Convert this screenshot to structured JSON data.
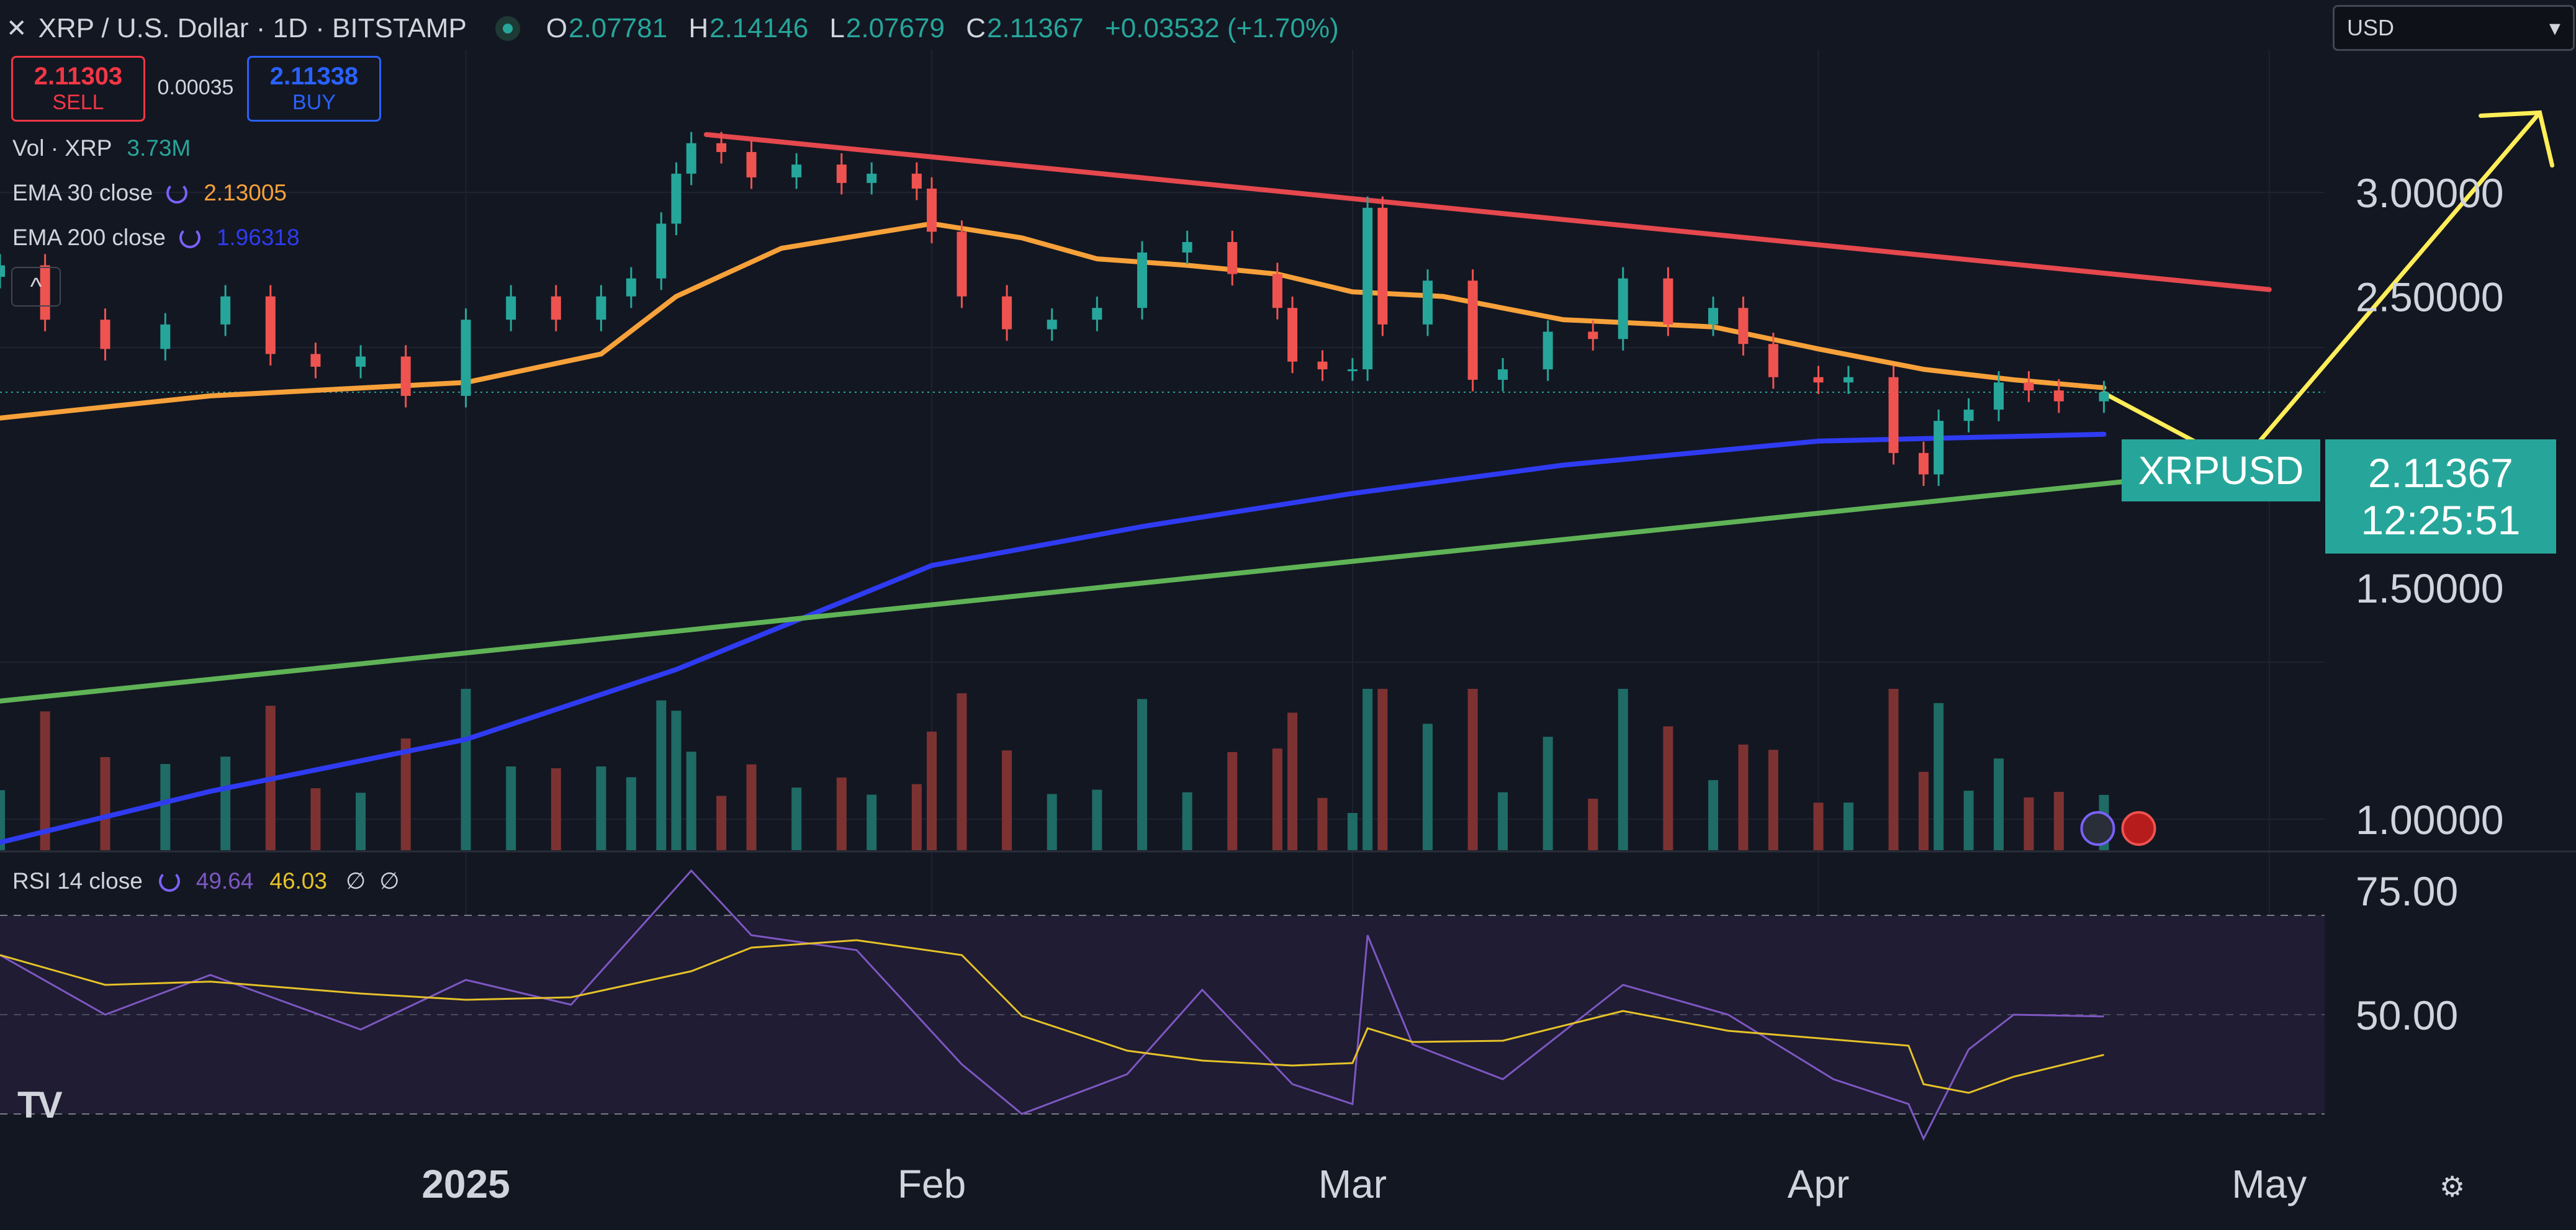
{
  "header": {
    "close_icon": "close-icon",
    "title": "XRP / U.S. Dollar · 1D · BITSTAMP",
    "ohlc": [
      {
        "k": "O",
        "v": "2.07781"
      },
      {
        "k": "H",
        "v": "2.14146"
      },
      {
        "k": "L",
        "v": "2.07679"
      },
      {
        "k": "C",
        "v": "2.11367"
      }
    ],
    "change": "+0.03532 (+1.70%)"
  },
  "trade": {
    "sell_price": "2.11303",
    "sell_label": "SELL",
    "spread": "0.00035",
    "buy_price": "2.11338",
    "buy_label": "BUY"
  },
  "legends": {
    "vol": {
      "name": "Vol · XRP",
      "value": "3.73M"
    },
    "ema30": {
      "name": "EMA 30 close",
      "value": "2.13005",
      "color": "#f7a13a"
    },
    "ema200": {
      "name": "EMA 200 close",
      "value": "1.96318",
      "color": "#2f3bf2"
    },
    "collapse": "^",
    "rsi": {
      "name": "RSI 14 close",
      "value1": "49.64",
      "value2": "46.03",
      "extra1": "∅",
      "extra2": "∅"
    }
  },
  "currency_select": {
    "value": "USD",
    "icon": "chevron-down-icon"
  },
  "price_labels": {
    "symbol": "XRPUSD",
    "price": "2.11367",
    "countdown": "12:25:51"
  },
  "logo": "TV",
  "settings_icon": "gear-icon",
  "colors": {
    "up": "#26a69a",
    "down": "#ef5350",
    "vol_up": "#1f6b66",
    "vol_down": "#7d3232",
    "resistance": "#e5484d",
    "support": "#5fb356",
    "projection": "#ffee58",
    "rsi_line": "#7e57c2",
    "rsi_ma": "#e6c229",
    "background": "#131722"
  },
  "chart_data": {
    "type": "candlestick",
    "title": "XRP / U.S. Dollar · 1D · BITSTAMP",
    "y_axis": {
      "scale": "log",
      "ticks": [
        "3.00000",
        "2.50000",
        "1.50000",
        "1.00000"
      ],
      "range": [
        0.95,
        3.55
      ]
    },
    "x_axis": {
      "ticks": [
        "2025",
        "Feb",
        "Mar",
        "Apr",
        "May"
      ],
      "range": [
        "2024-12-01",
        "2025-05-21"
      ]
    },
    "ohlc_2025_04_20": {
      "open": 2.07781,
      "high": 2.14146,
      "low": 2.07679,
      "close": 2.11367
    },
    "last_price": 2.11367,
    "closes": [
      {
        "date": "2024-12-01",
        "close": 2.64
      },
      {
        "date": "2024-12-04",
        "close": 2.4
      },
      {
        "date": "2024-12-08",
        "close": 2.28
      },
      {
        "date": "2024-12-12",
        "close": 2.38
      },
      {
        "date": "2024-12-16",
        "close": 2.5
      },
      {
        "date": "2024-12-19",
        "close": 2.26
      },
      {
        "date": "2024-12-22",
        "close": 2.21
      },
      {
        "date": "2024-12-25",
        "close": 2.25
      },
      {
        "date": "2024-12-28",
        "close": 2.1
      },
      {
        "date": "2025-01-01",
        "close": 2.4
      },
      {
        "date": "2025-01-04",
        "close": 2.5
      },
      {
        "date": "2025-01-07",
        "close": 2.4
      },
      {
        "date": "2025-01-10",
        "close": 2.5
      },
      {
        "date": "2025-01-12",
        "close": 2.58
      },
      {
        "date": "2025-01-14",
        "close": 2.84
      },
      {
        "date": "2025-01-15",
        "close": 3.1
      },
      {
        "date": "2025-01-16",
        "close": 3.27
      },
      {
        "date": "2025-01-18",
        "close": 3.22
      },
      {
        "date": "2025-01-20",
        "close": 3.08
      },
      {
        "date": "2025-01-23",
        "close": 3.15
      },
      {
        "date": "2025-01-26",
        "close": 3.05
      },
      {
        "date": "2025-01-28",
        "close": 3.1
      },
      {
        "date": "2025-01-31",
        "close": 3.02
      },
      {
        "date": "2025-02-01",
        "close": 2.8
      },
      {
        "date": "2025-02-03",
        "close": 2.5
      },
      {
        "date": "2025-02-06",
        "close": 2.36
      },
      {
        "date": "2025-02-09",
        "close": 2.4
      },
      {
        "date": "2025-02-12",
        "close": 2.45
      },
      {
        "date": "2025-02-15",
        "close": 2.7
      },
      {
        "date": "2025-02-18",
        "close": 2.75
      },
      {
        "date": "2025-02-21",
        "close": 2.6
      },
      {
        "date": "2025-02-24",
        "close": 2.45
      },
      {
        "date": "2025-02-25",
        "close": 2.23
      },
      {
        "date": "2025-02-27",
        "close": 2.2
      },
      {
        "date": "2025-03-01",
        "close": 2.2
      },
      {
        "date": "2025-03-02",
        "close": 2.92
      },
      {
        "date": "2025-03-03",
        "close": 2.38
      },
      {
        "date": "2025-03-06",
        "close": 2.57
      },
      {
        "date": "2025-03-09",
        "close": 2.16
      },
      {
        "date": "2025-03-11",
        "close": 2.2
      },
      {
        "date": "2025-03-14",
        "close": 2.35
      },
      {
        "date": "2025-03-17",
        "close": 2.32
      },
      {
        "date": "2025-03-19",
        "close": 2.58
      },
      {
        "date": "2025-03-22",
        "close": 2.38
      },
      {
        "date": "2025-03-25",
        "close": 2.45
      },
      {
        "date": "2025-03-27",
        "close": 2.3
      },
      {
        "date": "2025-03-29",
        "close": 2.17
      },
      {
        "date": "2025-04-01",
        "close": 2.15
      },
      {
        "date": "2025-04-03",
        "close": 2.17
      },
      {
        "date": "2025-04-06",
        "close": 1.9
      },
      {
        "date": "2025-04-08",
        "close": 1.83
      },
      {
        "date": "2025-04-09",
        "close": 2.01
      },
      {
        "date": "2025-04-11",
        "close": 2.05
      },
      {
        "date": "2025-04-13",
        "close": 2.15
      },
      {
        "date": "2025-04-15",
        "close": 2.12
      },
      {
        "date": "2025-04-17",
        "close": 2.08
      },
      {
        "date": "2025-04-20",
        "close": 2.11367
      }
    ],
    "series": [
      {
        "name": "EMA 30 close",
        "last": 2.13005,
        "points": [
          {
            "date": "2024-12-01",
            "value": 2.02
          },
          {
            "date": "2024-12-15",
            "value": 2.1
          },
          {
            "date": "2025-01-01",
            "value": 2.15
          },
          {
            "date": "2025-01-10",
            "value": 2.26
          },
          {
            "date": "2025-01-15",
            "value": 2.5
          },
          {
            "date": "2025-01-22",
            "value": 2.72
          },
          {
            "date": "2025-02-01",
            "value": 2.84
          },
          {
            "date": "2025-02-07",
            "value": 2.77
          },
          {
            "date": "2025-02-12",
            "value": 2.67
          },
          {
            "date": "2025-02-18",
            "value": 2.64
          },
          {
            "date": "2025-02-24",
            "value": 2.6
          },
          {
            "date": "2025-03-01",
            "value": 2.52
          },
          {
            "date": "2025-03-07",
            "value": 2.5
          },
          {
            "date": "2025-03-15",
            "value": 2.4
          },
          {
            "date": "2025-03-25",
            "value": 2.37
          },
          {
            "date": "2025-04-01",
            "value": 2.28
          },
          {
            "date": "2025-04-08",
            "value": 2.2
          },
          {
            "date": "2025-04-14",
            "value": 2.16
          },
          {
            "date": "2025-04-20",
            "value": 2.13005
          }
        ]
      },
      {
        "name": "EMA 200 close",
        "last": 1.96318,
        "points": [
          {
            "date": "2024-12-01",
            "value": 0.96
          },
          {
            "date": "2024-12-15",
            "value": 1.05
          },
          {
            "date": "2025-01-01",
            "value": 1.15
          },
          {
            "date": "2025-01-15",
            "value": 1.3
          },
          {
            "date": "2025-02-01",
            "value": 1.56
          },
          {
            "date": "2025-02-15",
            "value": 1.67
          },
          {
            "date": "2025-03-01",
            "value": 1.77
          },
          {
            "date": "2025-03-15",
            "value": 1.86
          },
          {
            "date": "2025-04-01",
            "value": 1.94
          },
          {
            "date": "2025-04-20",
            "value": 1.96318
          }
        ]
      },
      {
        "name": "Resistance trendline",
        "points": [
          {
            "date": "2025-01-17",
            "value": 3.32
          },
          {
            "date": "2025-05-01",
            "value": 2.53
          }
        ]
      },
      {
        "name": "Support trendline",
        "points": [
          {
            "date": "2024-12-01",
            "value": 1.23
          },
          {
            "date": "2025-04-30",
            "value": 1.85
          }
        ]
      },
      {
        "name": "Projection",
        "points": [
          {
            "date": "2025-04-20",
            "value": 2.11
          },
          {
            "date": "2025-04-29",
            "value": 1.86
          },
          {
            "date": "2025-05-19",
            "value": 3.45
          }
        ]
      }
    ],
    "volume": {
      "label": "Vol · XRP",
      "last": "3.73M"
    },
    "rsi": {
      "label": "RSI 14 close",
      "length": 14,
      "value": 49.64,
      "ma_value": 46.03,
      "ticks": [
        "75.00",
        "50.00"
      ],
      "bands": [
        30,
        70
      ],
      "points": [
        {
          "date": "2024-12-01",
          "value": 62
        },
        {
          "date": "2024-12-08",
          "value": 50
        },
        {
          "date": "2024-12-15",
          "value": 58
        },
        {
          "date": "2024-12-25",
          "value": 47
        },
        {
          "date": "2025-01-01",
          "value": 57
        },
        {
          "date": "2025-01-08",
          "value": 52
        },
        {
          "date": "2025-01-16",
          "value": 79
        },
        {
          "date": "2025-01-20",
          "value": 66
        },
        {
          "date": "2025-01-27",
          "value": 63
        },
        {
          "date": "2025-02-03",
          "value": 40
        },
        {
          "date": "2025-02-07",
          "value": 30
        },
        {
          "date": "2025-02-14",
          "value": 38
        },
        {
          "date": "2025-02-19",
          "value": 55
        },
        {
          "date": "2025-02-25",
          "value": 36
        },
        {
          "date": "2025-03-01",
          "value": 32
        },
        {
          "date": "2025-03-02",
          "value": 66
        },
        {
          "date": "2025-03-05",
          "value": 44
        },
        {
          "date": "2025-03-11",
          "value": 37
        },
        {
          "date": "2025-03-19",
          "value": 56
        },
        {
          "date": "2025-03-26",
          "value": 50
        },
        {
          "date": "2025-04-02",
          "value": 37
        },
        {
          "date": "2025-04-07",
          "value": 32
        },
        {
          "date": "2025-04-08",
          "value": 25
        },
        {
          "date": "2025-04-11",
          "value": 43
        },
        {
          "date": "2025-04-14",
          "value": 50
        },
        {
          "date": "2025-04-20",
          "value": 49.64
        }
      ]
    }
  }
}
